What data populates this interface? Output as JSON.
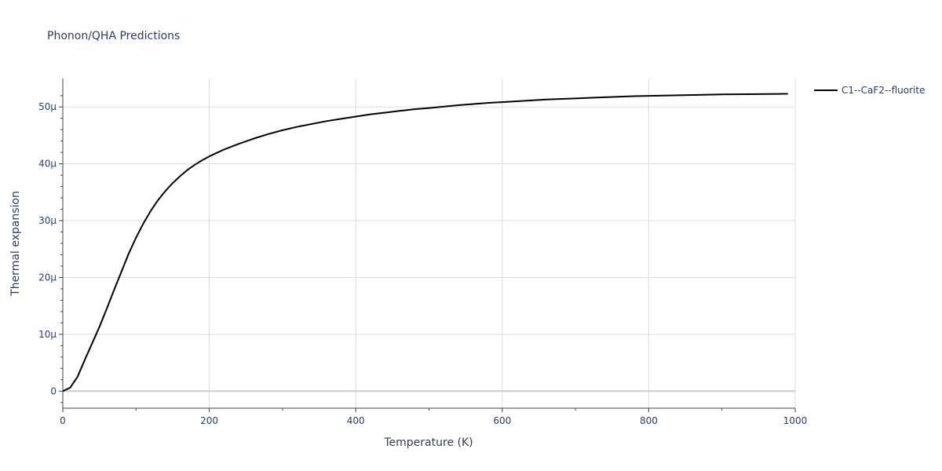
{
  "chart_data": {
    "type": "line",
    "title": "Phonon/QHA Predictions",
    "xlabel": "Temperature (K)",
    "ylabel": "Thermal expansion",
    "xlim": [
      0,
      1000
    ],
    "ylim": [
      -3e-06,
      5.5e-05
    ],
    "x_ticks": [
      0,
      200,
      400,
      600,
      800,
      1000
    ],
    "x_tick_labels": [
      "0",
      "200",
      "400",
      "600",
      "800",
      "1000"
    ],
    "y_ticks": [
      0,
      1e-05,
      2e-05,
      3e-05,
      4e-05,
      5e-05
    ],
    "y_tick_labels": [
      "0",
      "10μ",
      "20μ",
      "30μ",
      "40μ",
      "50μ"
    ],
    "grid": true,
    "legend_position": "top-right",
    "series": [
      {
        "name": "C1--CaF2--fluorite",
        "color": "#000000",
        "x": [
          0,
          10,
          20,
          30,
          40,
          50,
          60,
          70,
          80,
          90,
          100,
          110,
          120,
          130,
          140,
          150,
          160,
          170,
          180,
          190,
          200,
          220,
          240,
          260,
          280,
          300,
          320,
          340,
          360,
          380,
          400,
          420,
          440,
          460,
          480,
          500,
          540,
          580,
          620,
          660,
          700,
          740,
          780,
          820,
          860,
          900,
          950,
          990
        ],
        "y": [
          0,
          6e-07,
          2.5e-06,
          5.5e-06,
          8.4e-06,
          1.13e-05,
          1.45e-05,
          1.78e-05,
          2.1e-05,
          2.42e-05,
          2.7e-05,
          2.95e-05,
          3.17e-05,
          3.36e-05,
          3.52e-05,
          3.66e-05,
          3.78e-05,
          3.89e-05,
          3.98e-05,
          4.06e-05,
          4.13e-05,
          4.25e-05,
          4.35e-05,
          4.44e-05,
          4.52e-05,
          4.59e-05,
          4.65e-05,
          4.7e-05,
          4.75e-05,
          4.79e-05,
          4.83e-05,
          4.87e-05,
          4.9e-05,
          4.93e-05,
          4.96e-05,
          4.98e-05,
          5.03e-05,
          5.07e-05,
          5.1e-05,
          5.13e-05,
          5.15e-05,
          5.17e-05,
          5.19e-05,
          5.2e-05,
          5.21e-05,
          5.22e-05,
          5.225e-05,
          5.23e-05
        ]
      }
    ]
  }
}
